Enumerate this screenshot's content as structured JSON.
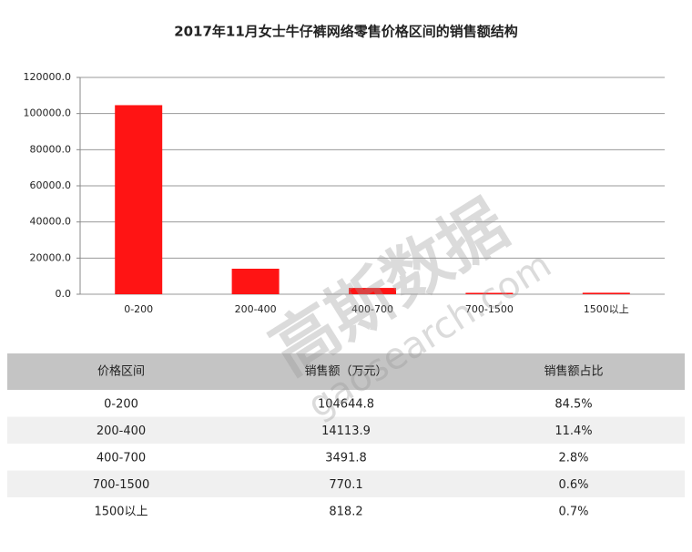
{
  "chart_data": {
    "type": "bar",
    "title": "2017年11月女士牛仔裤网络零售价格区间的销售额结构",
    "categories": [
      "0-200",
      "200-400",
      "400-700",
      "700-1500",
      "1500以上"
    ],
    "values": [
      104644.8,
      14113.9,
      3491.8,
      770.1,
      818.2
    ],
    "color": "#ff1414",
    "ylim": [
      0,
      120000
    ],
    "yticks": [
      {
        "value": 0,
        "label": "0.0"
      },
      {
        "value": 20000,
        "label": "20000.0"
      },
      {
        "value": 40000,
        "label": "40000.0"
      },
      {
        "value": 60000,
        "label": "60000.0"
      },
      {
        "value": 80000,
        "label": "80000.0"
      },
      {
        "value": 100000,
        "label": "100000.0"
      },
      {
        "value": 120000,
        "label": "120000.0"
      }
    ],
    "grid": true
  },
  "table": {
    "header": [
      "价格区间",
      "销售额（万元）",
      "销售额占比"
    ],
    "rows": [
      [
        "0-200",
        "104644.8",
        "84.5%"
      ],
      [
        "200-400",
        "14113.9",
        "11.4%"
      ],
      [
        "400-700",
        "3491.8",
        "2.8%"
      ],
      [
        "700-1500",
        "770.1",
        "0.6%"
      ],
      [
        "1500以上",
        "818.2",
        "0.7%"
      ]
    ]
  },
  "watermark": {
    "text": "高斯数据",
    "url": "gaosearch.com"
  }
}
